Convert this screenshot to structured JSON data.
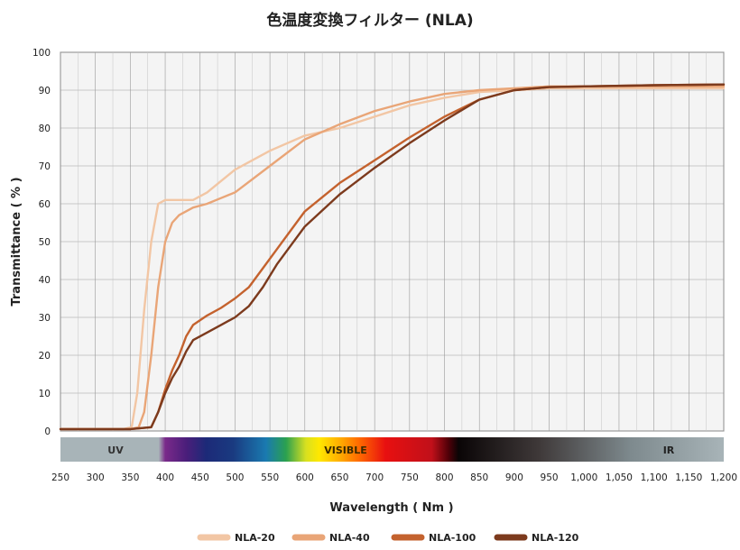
{
  "chart_data": {
    "type": "line",
    "title": "色温度変換フィルター (NLA)",
    "xlabel": "Wavelength ( Nm )",
    "ylabel": "Transmittance ( % )",
    "xlim": [
      250,
      1200
    ],
    "ylim": [
      0,
      100
    ],
    "grid": true,
    "x_ticks": [
      "250",
      "300",
      "350",
      "400",
      "450",
      "500",
      "550",
      "600",
      "650",
      "700",
      "750",
      "800",
      "850",
      "900",
      "950",
      "1,000",
      "1,050",
      "1,100",
      "1,150",
      "1,200"
    ],
    "y_ticks": [
      "0",
      "10",
      "20",
      "30",
      "40",
      "50",
      "60",
      "70",
      "80",
      "90",
      "100"
    ],
    "spectrum_labels": {
      "uv": "UV",
      "visible": "VISIBLE",
      "ir": "IR"
    },
    "legend_position": "bottom",
    "series": [
      {
        "name": "NLA-20",
        "color": "#f2c6a4",
        "x": [
          250,
          300,
          340,
          352,
          360,
          370,
          380,
          390,
          400,
          420,
          440,
          460,
          480,
          500,
          550,
          600,
          650,
          700,
          750,
          800,
          850,
          900,
          950,
          1000,
          1100,
          1200
        ],
        "y": [
          0.5,
          0.5,
          0.5,
          1,
          10,
          32,
          50,
          60,
          61,
          61,
          61,
          63,
          66,
          69,
          74,
          78,
          80,
          83,
          86,
          88,
          89.5,
          90,
          90.5,
          90.5,
          90.5,
          90.5
        ]
      },
      {
        "name": "NLA-40",
        "color": "#e9a577",
        "x": [
          250,
          300,
          350,
          362,
          370,
          380,
          390,
          400,
          410,
          420,
          440,
          460,
          480,
          500,
          550,
          600,
          650,
          700,
          750,
          800,
          850,
          900,
          950,
          1000,
          1100,
          1200
        ],
        "y": [
          0.5,
          0.5,
          0.5,
          1,
          5,
          20,
          38,
          50,
          55,
          57,
          59,
          60,
          61.5,
          63,
          70,
          77,
          81,
          84.5,
          87,
          89,
          90,
          90.5,
          91,
          91,
          91,
          91
        ]
      },
      {
        "name": "NLA-100",
        "color": "#c4622e",
        "x": [
          250,
          300,
          350,
          380,
          390,
          400,
          410,
          420,
          430,
          440,
          460,
          480,
          500,
          520,
          540,
          560,
          580,
          600,
          650,
          700,
          750,
          800,
          850,
          900,
          950,
          1000,
          1100,
          1200
        ],
        "y": [
          0.5,
          0.5,
          0.5,
          1,
          5,
          11,
          16,
          20,
          25,
          28,
          30.5,
          32.5,
          35,
          38,
          43,
          48,
          53,
          58,
          65.5,
          71.5,
          77.5,
          83,
          87.5,
          90,
          90.8,
          91,
          91.3,
          91.5
        ]
      },
      {
        "name": "NLA-120",
        "color": "#7c3a1d",
        "x": [
          250,
          300,
          350,
          380,
          390,
          400,
          410,
          420,
          430,
          440,
          460,
          480,
          500,
          520,
          540,
          560,
          580,
          600,
          650,
          700,
          750,
          800,
          850,
          900,
          950,
          1000,
          1100,
          1200
        ],
        "y": [
          0.5,
          0.5,
          0.5,
          1,
          5,
          10,
          14,
          17,
          21,
          24,
          26,
          28,
          30,
          33,
          38,
          44,
          49,
          54,
          62.5,
          69.5,
          76,
          82,
          87.5,
          90,
          90.8,
          91,
          91.3,
          91.5
        ]
      }
    ]
  }
}
